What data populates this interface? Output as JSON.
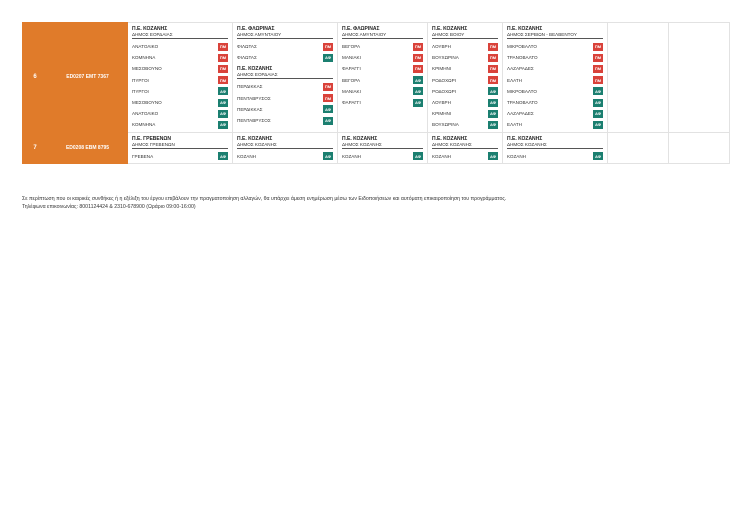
{
  "rows": [
    {
      "num": "6",
      "code": "ED0207 EMT 7367",
      "columns": [
        {
          "groups": [
            {
              "pe": "Π.Ε. ΚΟΖΑΝΗΣ",
              "dimos": "ΔΗΜΟΣ ΕΟΡΔΑΙΑΣ",
              "stops": [
                {
                  "name": "ΑΝΑΤΟΛΙΚΟ",
                  "badge": "ΠΜ",
                  "kind": "pm"
                },
                {
                  "name": "ΚΟΜΝΗΝΑ",
                  "badge": "ΠΜ",
                  "kind": "pm"
                },
                {
                  "name": "ΜΕΣΟΒΟΥΝΟ",
                  "badge": "ΠΜ",
                  "kind": "pm"
                },
                {
                  "name": "ΠΥΡΓΟΙ",
                  "badge": "ΠΜ",
                  "kind": "pm"
                },
                {
                  "name": "ΠΥΡΓΟΙ",
                  "badge": "ΑΦ",
                  "kind": "af"
                },
                {
                  "name": "ΜΕΣΟΒΟΥΝΟ",
                  "badge": "ΑΦ",
                  "kind": "af"
                },
                {
                  "name": "ΑΝΑΤΟΛΙΚΟ",
                  "badge": "ΑΦ",
                  "kind": "af"
                },
                {
                  "name": "ΚΟΜΝΗΝΑ",
                  "badge": "ΑΦ",
                  "kind": "af"
                }
              ]
            }
          ]
        },
        {
          "groups": [
            {
              "pe": "Π.Ε. ΦΛΩΡΙΝΑΣ",
              "dimos": "ΔΗΜΟΣ ΑΜΥΝΤΑΙΟΥ",
              "stops": [
                {
                  "name": "ΦΙΛΩΤΑΣ",
                  "badge": "ΠΜ",
                  "kind": "pm"
                },
                {
                  "name": "ΦΙΛΩΤΑΣ",
                  "badge": "ΑΦ",
                  "kind": "af"
                }
              ]
            },
            {
              "pe": "Π.Ε. ΚΟΖΑΝΗΣ",
              "dimos": "ΔΗΜΟΣ ΕΟΡΔΑΙΑΣ",
              "stops": [
                {
                  "name": "ΠΕΡΔΙΚΚΑΣ",
                  "badge": "ΠΜ",
                  "kind": "pm"
                },
                {
                  "name": "ΠΕΝΤΑΒΡΥΣΟΣ",
                  "badge": "ΠΜ",
                  "kind": "pm"
                },
                {
                  "name": "ΠΕΡΔΙΚΚΑΣ",
                  "badge": "ΑΦ",
                  "kind": "af"
                },
                {
                  "name": "ΠΕΝΤΑΒΡΥΣΟΣ",
                  "badge": "ΑΦ",
                  "kind": "af"
                }
              ]
            }
          ]
        },
        {
          "groups": [
            {
              "pe": "Π.Ε. ΦΛΩΡΙΝΑΣ",
              "dimos": "ΔΗΜΟΣ ΑΜΥΝΤΑΙΟΥ",
              "stops": [
                {
                  "name": "ΒΕΓΟΡΑ",
                  "badge": "ΠΜ",
                  "kind": "pm"
                },
                {
                  "name": "ΜΑΝΙΑΚΙ",
                  "badge": "ΠΜ",
                  "kind": "pm"
                },
                {
                  "name": "ΦΑΡΑΓΓΙ",
                  "badge": "ΠΜ",
                  "kind": "pm"
                },
                {
                  "name": "ΒΕΓΟΡΑ",
                  "badge": "ΑΦ",
                  "kind": "af"
                },
                {
                  "name": "ΜΑΝΙΑΚΙ",
                  "badge": "ΑΦ",
                  "kind": "af"
                },
                {
                  "name": "ΦΑΡΑΓΓΙ",
                  "badge": "ΑΦ",
                  "kind": "af"
                }
              ]
            }
          ]
        },
        {
          "groups": [
            {
              "pe": "Π.Ε. ΚΟΖΑΝΗΣ",
              "dimos": "ΔΗΜΟΣ ΒΟΙΟΥ",
              "stops": [
                {
                  "name": "ΛΟΥΒΡΗ",
                  "badge": "ΠΜ",
                  "kind": "pm"
                },
                {
                  "name": "ΒΟΥΧΩΡΙΝΑ",
                  "badge": "ΠΜ",
                  "kind": "pm"
                },
                {
                  "name": "ΚΡΙΜΗΝΙ",
                  "badge": "ΠΜ",
                  "kind": "pm"
                },
                {
                  "name": "ΡΟΔΟΧΩΡΙ",
                  "badge": "ΠΜ",
                  "kind": "pm"
                },
                {
                  "name": "ΡΟΔΟΧΩΡΙ",
                  "badge": "ΑΦ",
                  "kind": "af"
                },
                {
                  "name": "ΛΟΥΒΡΗ",
                  "badge": "ΑΦ",
                  "kind": "af"
                },
                {
                  "name": "ΚΡΙΜΗΝΙ",
                  "badge": "ΑΦ",
                  "kind": "af"
                },
                {
                  "name": "ΒΟΥΧΩΡΙΝΑ",
                  "badge": "ΑΦ",
                  "kind": "af"
                }
              ]
            }
          ]
        },
        {
          "groups": [
            {
              "pe": "Π.Ε. ΚΟΖΑΝΗΣ",
              "dimos": "ΔΗΜΟΣ ΣΕΡΒΙΩΝ - ΒΕΛΒΕΝΤΟΥ",
              "stops": [
                {
                  "name": "ΜΙΚΡΟΒΑΛΤΟ",
                  "badge": "ΠΜ",
                  "kind": "pm"
                },
                {
                  "name": "ΤΡΑΝΟΒΑΛΤΟ",
                  "badge": "ΠΜ",
                  "kind": "pm"
                },
                {
                  "name": "ΛΑΖΑΡΑΔΕΣ",
                  "badge": "ΠΜ",
                  "kind": "pm"
                },
                {
                  "name": "ΕΛΑΤΗ",
                  "badge": "ΠΜ",
                  "kind": "pm"
                },
                {
                  "name": "ΜΙΚΡΟΒΑΛΤΟ",
                  "badge": "ΑΦ",
                  "kind": "af"
                },
                {
                  "name": "ΤΡΑΝΟΒΑΛΤΟ",
                  "badge": "ΑΦ",
                  "kind": "af"
                },
                {
                  "name": "ΛΑΖΑΡΑΔΕΣ",
                  "badge": "ΑΦ",
                  "kind": "af"
                },
                {
                  "name": "ΕΛΑΤΗ",
                  "badge": "ΑΦ",
                  "kind": "af"
                }
              ]
            }
          ]
        }
      ]
    },
    {
      "num": "7",
      "code": "ED0208 EBM 8795",
      "columns": [
        {
          "groups": [
            {
              "pe": "Π.Ε. ΓΡΕΒΕΝΩΝ",
              "dimos": "ΔΗΜΟΣ ΓΡΕΒΕΝΩΝ",
              "stops": [
                {
                  "name": "ΓΡΕΒΕΝΑ",
                  "badge": "ΑΦ",
                  "kind": "af"
                }
              ]
            }
          ]
        },
        {
          "groups": [
            {
              "pe": "Π.Ε. ΚΟΖΑΝΗΣ",
              "dimos": "ΔΗΜΟΣ ΚΟΖΑΝΗΣ",
              "stops": [
                {
                  "name": "ΚΟΖΑΝΗ",
                  "badge": "ΑΦ",
                  "kind": "af"
                }
              ]
            }
          ]
        },
        {
          "groups": [
            {
              "pe": "Π.Ε. ΚΟΖΑΝΗΣ",
              "dimos": "ΔΗΜΟΣ ΚΟΖΑΝΗΣ",
              "stops": [
                {
                  "name": "ΚΟΖΑΝΗ",
                  "badge": "ΑΦ",
                  "kind": "af"
                }
              ]
            }
          ]
        },
        {
          "groups": [
            {
              "pe": "Π.Ε. ΚΟΖΑΝΗΣ",
              "dimos": "ΔΗΜΟΣ ΚΟΖΑΝΗΣ",
              "stops": [
                {
                  "name": "ΚΟΖΑΝΗ",
                  "badge": "ΑΦ",
                  "kind": "af"
                }
              ]
            }
          ]
        },
        {
          "groups": [
            {
              "pe": "Π.Ε. ΚΟΖΑΝΗΣ",
              "dimos": "ΔΗΜΟΣ ΚΟΖΑΝΗΣ",
              "stops": [
                {
                  "name": "ΚΟΖΑΝΗ",
                  "badge": "ΑΦ",
                  "kind": "af"
                }
              ]
            }
          ]
        }
      ]
    }
  ],
  "colors": {
    "header_orange": "#e07b2a",
    "badge_pm": "#d9423a",
    "badge_af": "#1b7f70"
  },
  "footer": {
    "line1": "Σε περίπτωση που οι καιρικές συνθήκες ή η εξέλιξη του έργου επιβάλουν την πραγματοποίηση αλλαγών, θα υπάρχει άμεση ενημέρωση μέσω των Ειδοποιήσεων και αυτόματη επικαιροποίηση του προγράμματος.",
    "line2": "Τηλέφωνα επικοινωνίας: 8001124424 & 2310-678900 (Ωράριο 09:00-16:00)"
  }
}
